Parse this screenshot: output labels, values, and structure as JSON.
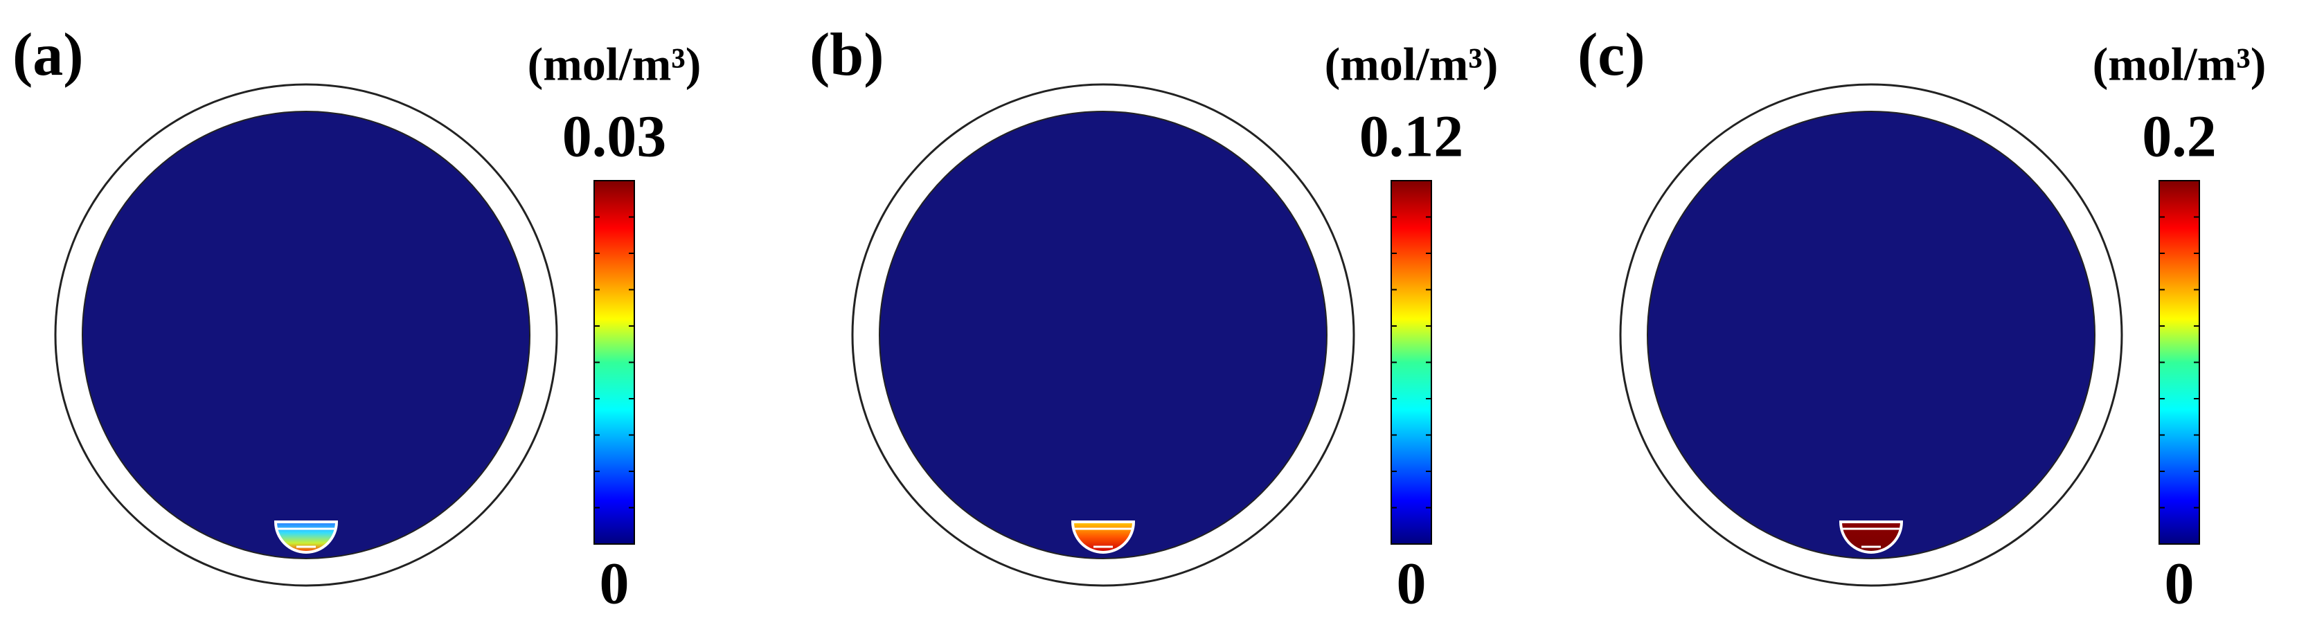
{
  "panels": [
    {
      "label": "(a)",
      "unit": "(mol/m³)",
      "colorbar": {
        "max": 0.03,
        "min": 0
      }
    },
    {
      "label": "(b)",
      "unit": "(mol/m³)",
      "colorbar": {
        "max": 0.12,
        "min": 0
      }
    },
    {
      "label": "(c)",
      "unit": "(mol/m³)",
      "colorbar": {
        "max": 0.2,
        "min": 0
      }
    }
  ]
}
